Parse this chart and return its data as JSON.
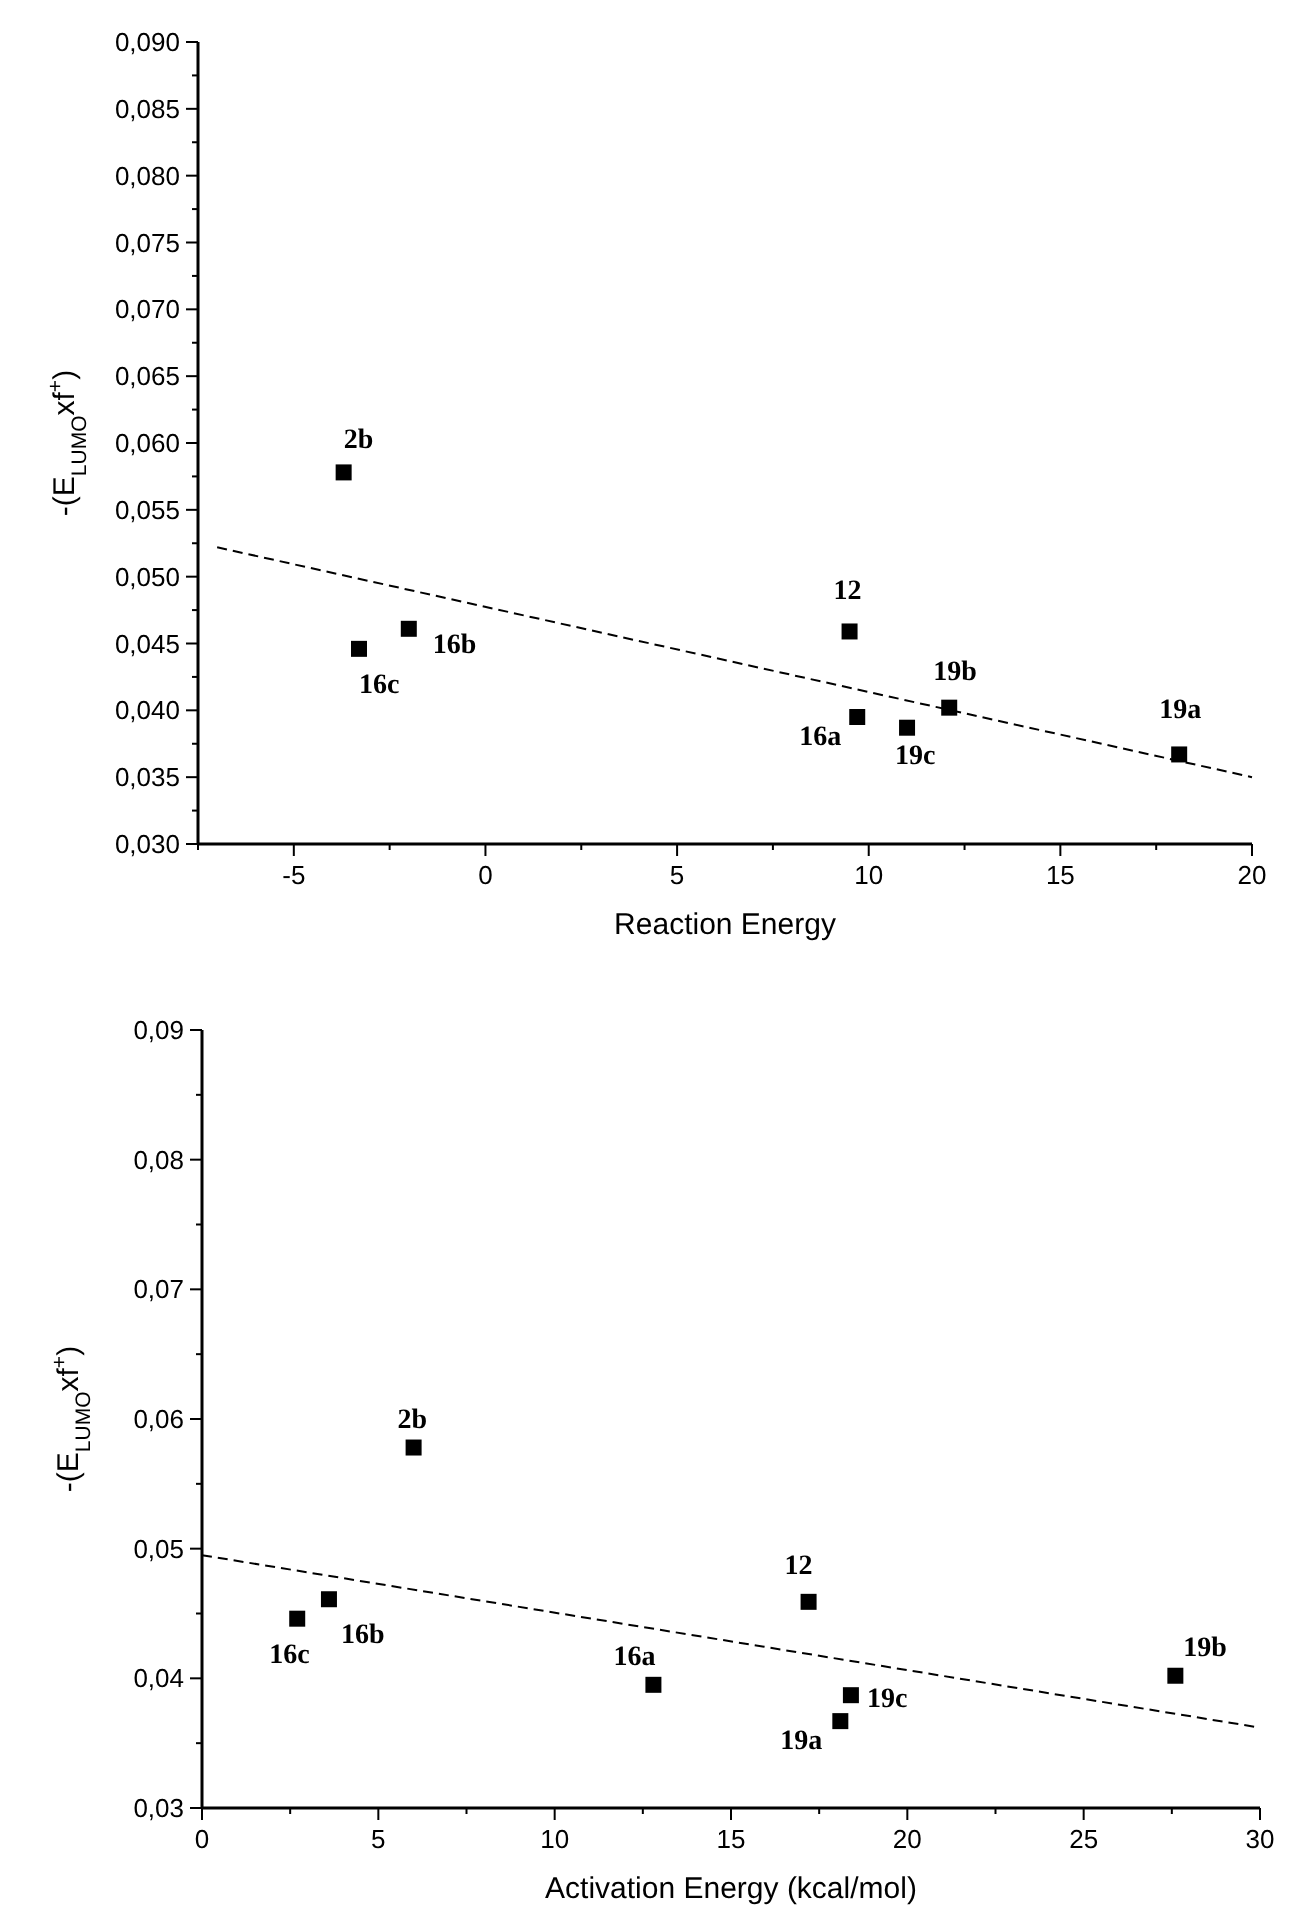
{
  "chart_data": [
    {
      "type": "scatter",
      "xlabel": "Reaction Energy",
      "ylabel": "-(E$_{LUMO}$xf$^{+}$)",
      "xlim": [
        -7.5,
        20
      ],
      "ylim": [
        0.03,
        0.09
      ],
      "xticks": [
        {
          "value": -7.5,
          "label": null
        },
        -5,
        {
          "value": -2.5,
          "label": null
        },
        0,
        {
          "value": 2.5,
          "label": null
        },
        5,
        {
          "value": 7.5,
          "label": null
        },
        10,
        {
          "value": 12.5,
          "label": null
        },
        15,
        {
          "value": 17.5,
          "label": null
        },
        20
      ],
      "yticks": [
        {
          "value": 0.03,
          "label": "0,030"
        },
        {
          "value": 0.0325,
          "label": null
        },
        {
          "value": 0.035,
          "label": "0,035"
        },
        {
          "value": 0.0375,
          "label": null
        },
        {
          "value": 0.04,
          "label": "0,040"
        },
        {
          "value": 0.0425,
          "label": null
        },
        {
          "value": 0.045,
          "label": "0,045"
        },
        {
          "value": 0.0475,
          "label": null
        },
        {
          "value": 0.05,
          "label": "0,050"
        },
        {
          "value": 0.0525,
          "label": null
        },
        {
          "value": 0.055,
          "label": "0,055"
        },
        {
          "value": 0.0575,
          "label": null
        },
        {
          "value": 0.06,
          "label": "0,060"
        },
        {
          "value": 0.0625,
          "label": null
        },
        {
          "value": 0.065,
          "label": "0,065"
        },
        {
          "value": 0.0675,
          "label": null
        },
        {
          "value": 0.07,
          "label": "0,070"
        },
        {
          "value": 0.0725,
          "label": null
        },
        {
          "value": 0.075,
          "label": "0,075"
        },
        {
          "value": 0.0775,
          "label": null
        },
        {
          "value": 0.08,
          "label": "0,080"
        },
        {
          "value": 0.0825,
          "label": null
        },
        {
          "value": 0.085,
          "label": "0,085"
        },
        {
          "value": 0.0875,
          "label": null
        },
        {
          "value": 0.09,
          "label": "0,090"
        }
      ],
      "grid": false,
      "series": [
        {
          "marker": "square",
          "color": "#000000",
          "x": [
            -3.7,
            -3.3,
            -2.0,
            9.5,
            9.7,
            11.0,
            12.1,
            18.1
          ],
          "values": [
            0.0578,
            0.0446,
            0.0461,
            0.0459,
            0.0395,
            0.0387,
            0.0402,
            0.0367
          ]
        },
        {
          "type": "line",
          "marker": "none",
          "color": "#000000",
          "line_style": "dashed",
          "x": [
            -7,
            20
          ],
          "values": [
            0.0522,
            0.035
          ]
        }
      ],
      "annotations": [
        {
          "text": "2b",
          "x": -3.7,
          "y": 0.0578
        },
        {
          "text": "16c",
          "x": -3.3,
          "y": 0.0446
        },
        {
          "text": "16b",
          "x": -2.0,
          "y": 0.0461
        },
        {
          "text": "12",
          "x": 9.5,
          "y": 0.0459
        },
        {
          "text": "16a",
          "x": 9.7,
          "y": 0.0395
        },
        {
          "text": "19c",
          "x": 11.0,
          "y": 0.0387
        },
        {
          "text": "19b",
          "x": 12.1,
          "y": 0.0402
        },
        {
          "text": "19a",
          "x": 18.1,
          "y": 0.0367
        }
      ]
    },
    {
      "type": "scatter",
      "xlabel": "Activation Energy (kcal/mol)",
      "ylabel": "-(E$_{LUMO}$xf$^{+}$)",
      "xlim": [
        0,
        30
      ],
      "ylim": [
        0.03,
        0.09
      ],
      "xticks": [
        0,
        {
          "value": 2.5,
          "label": null
        },
        5,
        {
          "value": 7.5,
          "label": null
        },
        10,
        {
          "value": 12.5,
          "label": null
        },
        15,
        {
          "value": 17.5,
          "label": null
        },
        20,
        {
          "value": 22.5,
          "label": null
        },
        25,
        {
          "value": 27.5,
          "label": null
        },
        30
      ],
      "yticks": [
        {
          "value": 0.03,
          "label": "0,03"
        },
        {
          "value": 0.035,
          "label": null
        },
        {
          "value": 0.04,
          "label": "0,04"
        },
        {
          "value": 0.045,
          "label": null
        },
        {
          "value": 0.05,
          "label": "0,05"
        },
        {
          "value": 0.055,
          "label": null
        },
        {
          "value": 0.06,
          "label": "0,06"
        },
        {
          "value": 0.065,
          "label": null
        },
        {
          "value": 0.07,
          "label": "0,07"
        },
        {
          "value": 0.075,
          "label": null
        },
        {
          "value": 0.08,
          "label": "0,08"
        },
        {
          "value": 0.085,
          "label": null
        },
        {
          "value": 0.09,
          "label": "0,09"
        }
      ],
      "grid": false,
      "series": [
        {
          "marker": "square",
          "color": "#000000",
          "x": [
            2.7,
            3.6,
            6.0,
            12.8,
            17.2,
            18.1,
            18.4,
            27.6
          ],
          "values": [
            0.0446,
            0.0461,
            0.0578,
            0.0395,
            0.0459,
            0.0367,
            0.0387,
            0.0402
          ]
        },
        {
          "type": "line",
          "marker": "none",
          "color": "#000000",
          "line_style": "dashed",
          "x": [
            0,
            30
          ],
          "values": [
            0.0495,
            0.0362
          ]
        }
      ],
      "annotations": [
        {
          "text": "16c",
          "x": 2.7,
          "y": 0.0446
        },
        {
          "text": "16b",
          "x": 3.6,
          "y": 0.0461
        },
        {
          "text": "2b",
          "x": 6.0,
          "y": 0.0578
        },
        {
          "text": "16a",
          "x": 12.8,
          "y": 0.0395
        },
        {
          "text": "12",
          "x": 17.2,
          "y": 0.0459
        },
        {
          "text": "19a",
          "x": 18.1,
          "y": 0.0367
        },
        {
          "text": "19c",
          "x": 18.4,
          "y": 0.0387
        },
        {
          "text": "19b",
          "x": 27.6,
          "y": 0.0402
        }
      ]
    }
  ]
}
